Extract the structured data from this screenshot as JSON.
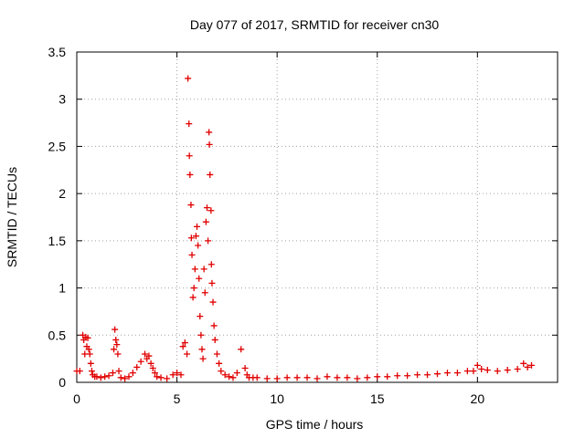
{
  "chart_data": {
    "type": "scatter",
    "title": "Day 077 of 2017, SRMTID for receiver cn30",
    "xlabel": "GPS time / hours",
    "ylabel": "SRMTID / TECUs",
    "xlim": [
      0,
      24
    ],
    "ylim": [
      0,
      3.5
    ],
    "x_ticks": [
      0,
      5,
      10,
      15,
      20
    ],
    "x_tick_labels": [
      "0",
      "5",
      "10",
      "15",
      "20"
    ],
    "y_ticks": [
      0,
      0.5,
      1,
      1.5,
      2,
      2.5,
      3,
      3.5
    ],
    "y_tick_labels": [
      "0",
      "0.5",
      "1",
      "1.5",
      "2",
      "2.5",
      "3",
      "3.5"
    ],
    "grid": true,
    "legend": "none",
    "marker": "plus",
    "color": "#e00000",
    "series": [
      {
        "x": [
          0.0,
          0.15,
          0.3,
          0.35,
          0.4,
          0.45,
          0.5,
          0.55,
          0.6,
          0.65,
          0.7,
          0.75,
          0.8,
          0.9,
          1.0,
          1.2,
          1.4,
          1.6,
          1.8,
          1.85,
          1.9,
          1.95,
          2.0,
          2.05,
          2.1,
          2.2,
          2.4,
          2.6,
          2.8,
          3.0,
          3.2,
          3.4,
          3.5,
          3.6,
          3.7,
          3.8,
          3.9,
          4.0,
          4.2,
          4.5,
          4.8,
          5.0,
          5.2,
          5.3,
          5.4,
          5.5,
          5.55,
          5.6,
          5.62,
          5.65,
          5.7,
          5.72,
          5.75,
          5.8,
          5.85,
          5.9,
          5.95,
          6.0,
          6.05,
          6.1,
          6.15,
          6.2,
          6.25,
          6.3,
          6.35,
          6.4,
          6.45,
          6.5,
          6.55,
          6.6,
          6.62,
          6.65,
          6.7,
          6.72,
          6.75,
          6.8,
          6.85,
          6.9,
          7.0,
          7.1,
          7.2,
          7.4,
          7.6,
          7.8,
          8.0,
          8.2,
          8.4,
          8.5,
          8.6,
          8.8,
          9.0,
          9.5,
          10.0,
          10.5,
          11.0,
          11.5,
          12.0,
          12.5,
          13.0,
          13.5,
          14.0,
          14.5,
          15.0,
          15.5,
          16.0,
          16.5,
          17.0,
          17.5,
          18.0,
          18.5,
          19.0,
          19.5,
          19.8,
          20.0,
          20.2,
          20.5,
          21.0,
          21.5,
          22.0,
          22.3,
          22.5,
          22.7
        ],
        "y": [
          0.12,
          0.12,
          0.5,
          0.45,
          0.3,
          0.48,
          0.38,
          0.47,
          0.35,
          0.3,
          0.2,
          0.12,
          0.08,
          0.06,
          0.06,
          0.05,
          0.06,
          0.07,
          0.1,
          0.35,
          0.56,
          0.45,
          0.4,
          0.3,
          0.12,
          0.05,
          0.04,
          0.06,
          0.1,
          0.16,
          0.22,
          0.3,
          0.25,
          0.28,
          0.2,
          0.15,
          0.1,
          0.06,
          0.05,
          0.04,
          0.08,
          0.1,
          0.08,
          0.38,
          0.42,
          0.3,
          3.22,
          2.74,
          2.4,
          2.2,
          1.88,
          1.53,
          1.35,
          0.9,
          1.0,
          1.2,
          1.55,
          1.65,
          1.45,
          1.1,
          0.7,
          0.5,
          0.35,
          0.25,
          1.2,
          0.95,
          1.7,
          1.85,
          1.5,
          2.65,
          2.52,
          2.2,
          1.82,
          1.25,
          1.05,
          0.85,
          0.6,
          0.45,
          0.3,
          0.2,
          0.12,
          0.08,
          0.06,
          0.05,
          0.1,
          0.35,
          0.15,
          0.08,
          0.05,
          0.05,
          0.05,
          0.04,
          0.04,
          0.05,
          0.05,
          0.05,
          0.04,
          0.06,
          0.05,
          0.05,
          0.04,
          0.05,
          0.06,
          0.06,
          0.07,
          0.07,
          0.08,
          0.08,
          0.09,
          0.1,
          0.1,
          0.12,
          0.12,
          0.18,
          0.14,
          0.13,
          0.12,
          0.13,
          0.14,
          0.2,
          0.16,
          0.18
        ]
      }
    ]
  }
}
